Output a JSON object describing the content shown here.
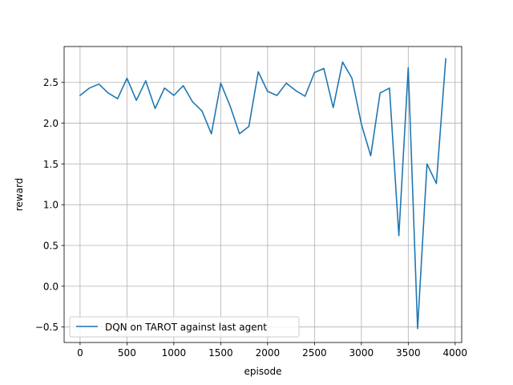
{
  "chart_data": {
    "type": "line",
    "title": "",
    "xlabel": "episode",
    "ylabel": "reward",
    "xlim": [
      -170,
      4070
    ],
    "ylim": [
      -0.69,
      2.94
    ],
    "xticks": [
      0,
      500,
      1000,
      1500,
      2000,
      2500,
      3000,
      3500,
      4000
    ],
    "yticks": [
      -0.5,
      0.0,
      0.5,
      1.0,
      1.5,
      2.0,
      2.5
    ],
    "xtick_labels": [
      "0",
      "500",
      "1000",
      "1500",
      "2000",
      "2500",
      "3000",
      "3500",
      "4000"
    ],
    "ytick_labels": [
      "−0.5",
      "0.0",
      "0.5",
      "1.0",
      "1.5",
      "2.0",
      "2.5"
    ],
    "grid": true,
    "legend_position": "lower-left",
    "series": [
      {
        "name": "DQN on TAROT against last agent",
        "color": "#1f77b4",
        "x": [
          0,
          100,
          200,
          300,
          400,
          500,
          600,
          700,
          800,
          900,
          1000,
          1100,
          1200,
          1300,
          1400,
          1500,
          1600,
          1700,
          1800,
          1900,
          2000,
          2100,
          2200,
          2300,
          2400,
          2500,
          2600,
          2700,
          2800,
          2900,
          3000,
          3100,
          3200,
          3300,
          3400,
          3500,
          3600,
          3700,
          3800,
          3900
        ],
        "y": [
          2.34,
          2.43,
          2.48,
          2.37,
          2.3,
          2.55,
          2.28,
          2.52,
          2.18,
          2.43,
          2.34,
          2.46,
          2.26,
          2.15,
          1.87,
          2.49,
          2.21,
          1.87,
          1.96,
          2.63,
          2.39,
          2.34,
          2.49,
          2.4,
          2.33,
          2.62,
          2.67,
          2.19,
          2.75,
          2.55,
          1.99,
          1.6,
          2.37,
          2.43,
          0.62,
          2.68,
          -0.52,
          1.5,
          1.26,
          2.79
        ]
      }
    ]
  }
}
